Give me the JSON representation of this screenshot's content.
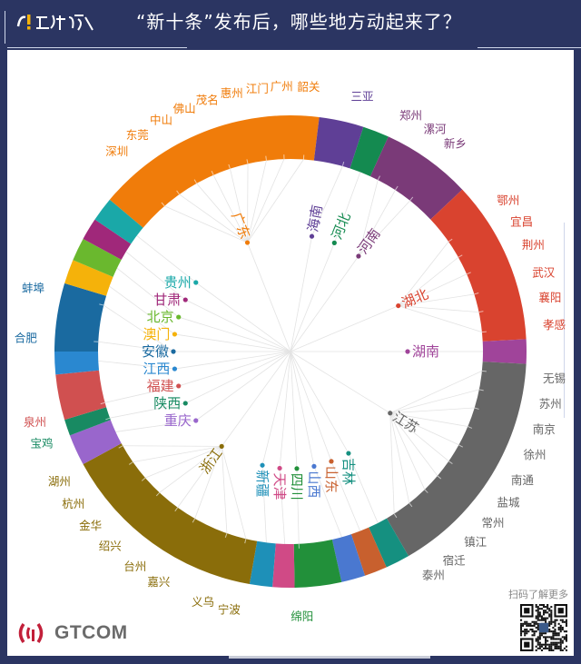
{
  "header": {
    "title": "“新十条”发布后，哪些地方动起来了？"
  },
  "footer": {
    "brand": "GTCOM",
    "scan_text": "扫码了解更多"
  },
  "icons": {
    "logo": "brand-logo-icon",
    "gtcom": "signal-waves-icon",
    "qr": "qr-code-icon"
  },
  "provinces": [
    {
      "name": "广东",
      "color": "#f07c0a",
      "cities": [
        "深圳",
        "东莞",
        "中山",
        "佛山",
        "茂名",
        "惠州",
        "江门",
        "广州",
        "韶关"
      ]
    },
    {
      "name": "海南",
      "color": "#5f3f96",
      "cities": [
        "三亚"
      ]
    },
    {
      "name": "河北",
      "color": "#148a50",
      "cities": []
    },
    {
      "name": "河南",
      "color": "#7a3a78",
      "cities": [
        "郑州",
        "漯河",
        "新乡"
      ]
    },
    {
      "name": "湖北",
      "color": "#d9432f",
      "cities": [
        "鄂州",
        "宜昌",
        "荆州",
        "武汉",
        "襄阳",
        "孝感"
      ]
    },
    {
      "name": "湖南",
      "color": "#a0449a",
      "cities": []
    },
    {
      "name": "江苏",
      "color": "#666666",
      "cities": [
        "无锡",
        "苏州",
        "南京",
        "徐州",
        "南通",
        "盐城",
        "常州",
        "镇江",
        "宿迁",
        "泰州"
      ]
    },
    {
      "name": "吉林",
      "color": "#159080",
      "cities": []
    },
    {
      "name": "山东",
      "color": "#c8602e",
      "cities": []
    },
    {
      "name": "山西",
      "color": "#4a78d0",
      "cities": []
    },
    {
      "name": "四川",
      "color": "#22903a",
      "cities": [
        "绵阳"
      ]
    },
    {
      "name": "天津",
      "color": "#d04a86",
      "cities": []
    },
    {
      "name": "新疆",
      "color": "#1e90b8",
      "cities": []
    },
    {
      "name": "浙江",
      "color": "#8a6d0a",
      "cities": [
        "宁波",
        "义乌",
        "嘉兴",
        "台州",
        "绍兴",
        "金华",
        "杭州",
        "湖州"
      ]
    },
    {
      "name": "重庆",
      "color": "#9966cc",
      "cities": []
    },
    {
      "name": "陕西",
      "color": "#188a62",
      "cities": [
        "宝鸡"
      ]
    },
    {
      "name": "福建",
      "color": "#d05050",
      "cities": [
        "泉州"
      ]
    },
    {
      "name": "江西",
      "color": "#2a88d0",
      "cities": []
    },
    {
      "name": "安徽",
      "color": "#1a6aa0",
      "cities": [
        "合肥",
        "蚌埠"
      ]
    },
    {
      "name": "澳门",
      "color": "#f5b20a",
      "cities": []
    },
    {
      "name": "北京",
      "color": "#6ab82e",
      "cities": []
    },
    {
      "name": "甘肃",
      "color": "#a0287a",
      "cities": []
    },
    {
      "name": "贵州",
      "color": "#1aa8a8",
      "cities": []
    }
  ]
}
